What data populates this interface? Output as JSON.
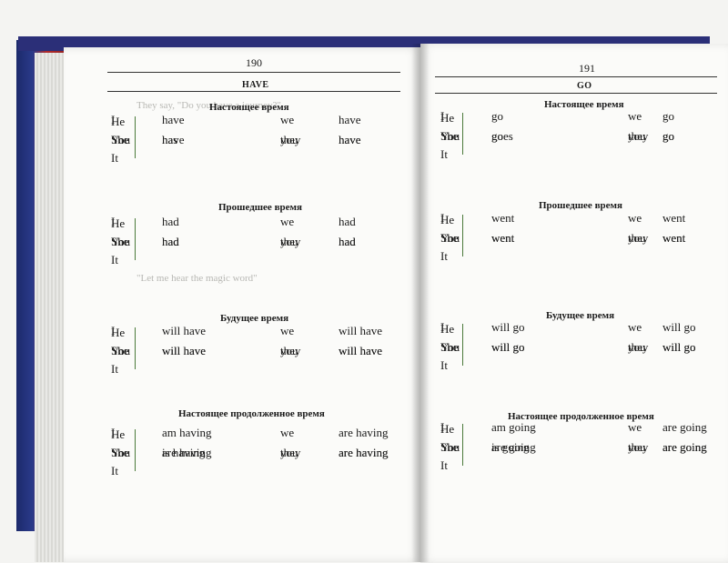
{
  "left_page": {
    "number": "190",
    "verb": "HAVE",
    "sections": [
      {
        "title": "Настоящее время",
        "rows": [
          [
            "I",
            "have",
            "we",
            "have"
          ],
          [
            "You",
            "have",
            "you",
            "have"
          ],
          [
            "He\nShe\nIt",
            "has",
            "they",
            "have"
          ]
        ]
      },
      {
        "title": "Прошедшее время",
        "rows": [
          [
            "I",
            "had",
            "we",
            "had"
          ],
          [
            "You",
            "had",
            "you",
            "had"
          ],
          [
            "He\nShe\nIt",
            "had",
            "they",
            "had"
          ]
        ]
      },
      {
        "title": "Будущее  время",
        "rows": [
          [
            "I",
            "will have",
            "we",
            "will have"
          ],
          [
            "You",
            "will have",
            "you",
            "will have"
          ],
          [
            "He\nShe\nIt",
            "will have",
            "they",
            "will have"
          ]
        ]
      },
      {
        "title": "Настоящее продолженное  время",
        "rows": [
          [
            "I",
            "am having",
            "we",
            "are  having"
          ],
          [
            "You",
            "are having",
            "you",
            "are having"
          ],
          [
            "He\nShe\nIt",
            "is having",
            "they",
            "are having"
          ]
        ]
      }
    ]
  },
  "right_page": {
    "number": "191",
    "verb": "GO",
    "sections": [
      {
        "title": "Настоящее время",
        "rows": [
          [
            "I",
            "go",
            "we",
            "go"
          ],
          [
            "You",
            "go",
            "you",
            "go"
          ],
          [
            "He\nShe\nIt",
            "goes",
            "they",
            "go"
          ]
        ]
      },
      {
        "title": "Прошедшее время",
        "rows": [
          [
            "I",
            "went",
            "we",
            "went"
          ],
          [
            "You",
            "went",
            "you",
            "went"
          ],
          [
            "He\nShe\nIt",
            "went",
            "they",
            "went"
          ]
        ]
      },
      {
        "title": "Будущее время",
        "rows": [
          [
            "I",
            "will go",
            "we",
            "will go"
          ],
          [
            "You",
            "will go",
            "you",
            "will go"
          ],
          [
            "He\nShe\nIt",
            "will go",
            "they",
            "will go"
          ]
        ]
      },
      {
        "title": "Настоящее продолженное  время",
        "rows": [
          [
            "I",
            "am going",
            "we",
            "are  going"
          ],
          [
            "You",
            "are going",
            "you",
            "are going"
          ],
          [
            "He\nShe\nIt",
            "is going",
            "they",
            "are going"
          ]
        ]
      }
    ]
  }
}
